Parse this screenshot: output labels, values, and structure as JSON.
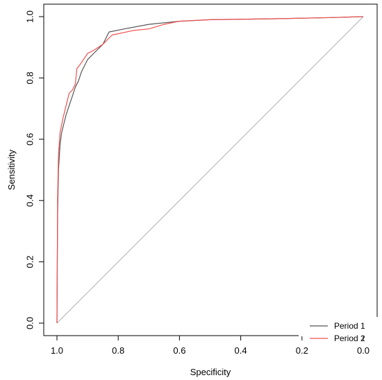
{
  "chart_data": {
    "type": "line",
    "title": "",
    "xlabel": "Specificity",
    "ylabel": "Sensitivity",
    "x_reversed": true,
    "xlim": [
      1.0,
      0.0
    ],
    "ylim": [
      0.0,
      1.0
    ],
    "x_ticks": [
      "1.0",
      "0.8",
      "0.6",
      "0.4",
      "0.2",
      "0.0"
    ],
    "y_ticks": [
      "0.0",
      "0.2",
      "0.4",
      "0.6",
      "0.8",
      "1.0"
    ],
    "grid": false,
    "legend_position": "bottom-right",
    "reference_line": {
      "from": [
        1.0,
        0.0
      ],
      "to": [
        0.0,
        1.0
      ],
      "color": "#b0b0b0"
    },
    "series": [
      {
        "name": "Period 1",
        "color": "#555555",
        "points": [
          [
            1.0,
            0.0
          ],
          [
            0.998,
            0.35
          ],
          [
            0.995,
            0.5
          ],
          [
            0.99,
            0.58
          ],
          [
            0.985,
            0.62
          ],
          [
            0.98,
            0.64
          ],
          [
            0.97,
            0.68
          ],
          [
            0.96,
            0.71
          ],
          [
            0.95,
            0.74
          ],
          [
            0.94,
            0.77
          ],
          [
            0.93,
            0.79
          ],
          [
            0.92,
            0.82
          ],
          [
            0.9,
            0.86
          ],
          [
            0.88,
            0.88
          ],
          [
            0.85,
            0.91
          ],
          [
            0.83,
            0.95
          ],
          [
            0.78,
            0.96
          ],
          [
            0.7,
            0.975
          ],
          [
            0.6,
            0.985
          ],
          [
            0.5,
            0.99
          ],
          [
            0.3,
            0.993
          ],
          [
            0.1,
            0.997
          ],
          [
            0.0,
            1.0
          ]
        ]
      },
      {
        "name": "Period 2",
        "color": "#f05050",
        "points": [
          [
            1.0,
            0.0
          ],
          [
            0.998,
            0.4
          ],
          [
            0.995,
            0.55
          ],
          [
            0.99,
            0.62
          ],
          [
            0.98,
            0.67
          ],
          [
            0.97,
            0.71
          ],
          [
            0.96,
            0.75
          ],
          [
            0.95,
            0.76
          ],
          [
            0.94,
            0.78
          ],
          [
            0.935,
            0.83
          ],
          [
            0.92,
            0.85
          ],
          [
            0.9,
            0.88
          ],
          [
            0.88,
            0.89
          ],
          [
            0.85,
            0.91
          ],
          [
            0.82,
            0.94
          ],
          [
            0.75,
            0.955
          ],
          [
            0.7,
            0.96
          ],
          [
            0.65,
            0.975
          ],
          [
            0.6,
            0.985
          ],
          [
            0.5,
            0.99
          ],
          [
            0.3,
            0.993
          ],
          [
            0.1,
            0.997
          ],
          [
            0.0,
            1.0
          ]
        ]
      }
    ]
  }
}
